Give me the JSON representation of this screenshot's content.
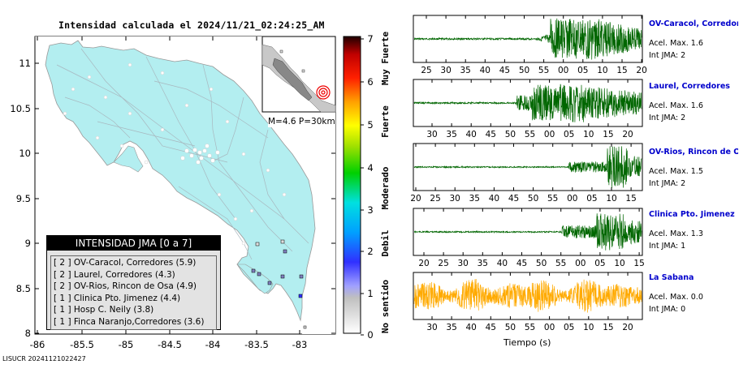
{
  "map": {
    "title": "Intensidad calculada el 2024/11/21_02:24:25_AM",
    "y_ticks": [
      "11",
      "10.5",
      "10",
      "9.5",
      "9",
      "8.5",
      "8"
    ],
    "x_ticks": [
      "-86",
      "-85.5",
      "-85",
      "-84.5",
      "-84",
      "-83.5",
      "-83"
    ],
    "inset_label": "M=4.6 P=30km"
  },
  "colorbar": {
    "ticks": [
      "7",
      "6",
      "5",
      "4",
      "3",
      "2",
      "1",
      "0"
    ],
    "labels": [
      "Muy Fuerte",
      "Fuerte",
      "Moderado",
      "Debil",
      "No sentido"
    ]
  },
  "legend": {
    "title": "INTENSIDAD JMA [0 a 7]",
    "rows": [
      "[ 2 ]  OV-Caracol, Corredores (5.9)",
      "[ 2 ]  Laurel, Corredores (4.3)",
      "[ 2 ]  OV-Rios, Rincon de Osa (4.9)",
      "[ 1 ]  Clinica Pto. Jimenez (4.4)",
      "[ 1 ]  Hosp C. Neily (3.8)",
      "[ 1 ]  Finca Naranjo,Corredores (3.6)"
    ]
  },
  "footer": "LISUCR 20241121022427",
  "waveforms": {
    "xlabel": "Tiempo (s)",
    "stations": [
      {
        "name": "OV-Caracol, Corredore",
        "acel": "Acel. Max. 1.6",
        "int": "Int JMA: 2",
        "ticks": [
          "25",
          "30",
          "35",
          "40",
          "45",
          "50",
          "55",
          "00",
          "05",
          "10",
          "15",
          "20"
        ],
        "color": "#006600"
      },
      {
        "name": "Laurel, Corredores",
        "acel": "Acel. Max. 1.6",
        "int": "Int JMA: 2",
        "ticks": [
          "30",
          "35",
          "40",
          "45",
          "50",
          "55",
          "00",
          "05",
          "10",
          "15",
          "20",
          "25"
        ],
        "color": "#006600"
      },
      {
        "name": "OV-Rios, Rincon de Os",
        "acel": "Acel. Max. 1.5",
        "int": "Int JMA: 2",
        "ticks": [
          "20",
          "25",
          "30",
          "35",
          "40",
          "45",
          "50",
          "55",
          "00",
          "05",
          "10",
          "15"
        ],
        "color": "#006600"
      },
      {
        "name": "Clinica Pto. Jimenez",
        "acel": "Acel. Max. 1.3",
        "int": "Int JMA: 1",
        "ticks": [
          "20",
          "25",
          "30",
          "35",
          "40",
          "45",
          "50",
          "55",
          "00",
          "05",
          "10",
          "15"
        ],
        "color": "#006600"
      },
      {
        "name": "La Sabana",
        "acel": "Acel. Max. 0.0",
        "int": "Int JMA: 0",
        "ticks": [
          "30",
          "35",
          "40",
          "45",
          "50",
          "55",
          "00",
          "05",
          "10",
          "15",
          "20",
          "25"
        ],
        "color": "#ffaa00"
      }
    ]
  }
}
